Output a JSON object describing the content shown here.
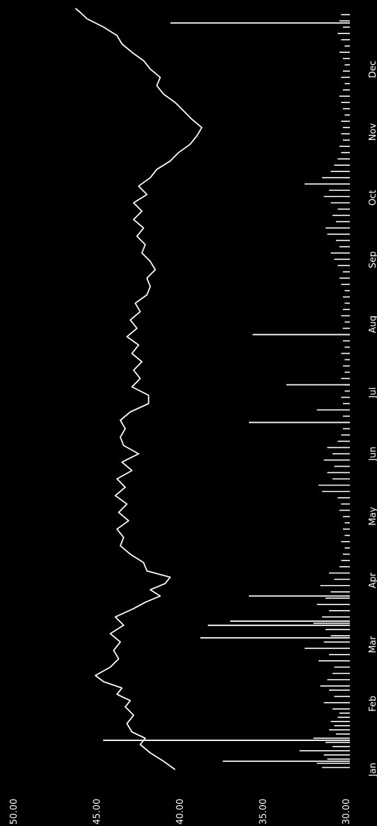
{
  "chart_data": {
    "type": "line",
    "orientation": "rotated-90-clockwise",
    "title": "",
    "xlabel": "",
    "ylabel": "",
    "grid": false,
    "legend": "none",
    "colors": {
      "background": "#000000",
      "line": "#ffffff",
      "volume": "#ffffff",
      "text": "#ffffff"
    },
    "ylim": [
      30,
      50
    ],
    "y_ticks": [
      "30.00",
      "35.00",
      "40.00",
      "45.00",
      "50.00"
    ],
    "y_tick_values": [
      30,
      35,
      40,
      45,
      50
    ],
    "x_ticks": [
      "Jan",
      "Feb",
      "Mar",
      "Apr",
      "May",
      "Jun",
      "Jul",
      "Aug",
      "Sep",
      "Oct",
      "Nov",
      "Dec"
    ],
    "x_tick_days": [
      1,
      32,
      60,
      91,
      121,
      152,
      182,
      213,
      244,
      274,
      305,
      335
    ],
    "x_range_days": [
      1,
      365
    ],
    "series": [
      {
        "kind": "price-line",
        "points": [
          [
            1,
            40.3
          ],
          [
            5,
            41.0
          ],
          [
            9,
            41.8
          ],
          [
            13,
            42.4
          ],
          [
            16,
            42.1
          ],
          [
            19,
            42.9
          ],
          [
            23,
            43.2
          ],
          [
            27,
            42.8
          ],
          [
            31,
            43.3
          ],
          [
            34,
            43.0
          ],
          [
            37,
            43.8
          ],
          [
            40,
            43.5
          ],
          [
            43,
            44.6
          ],
          [
            46,
            45.1
          ],
          [
            50,
            44.2
          ],
          [
            54,
            43.7
          ],
          [
            58,
            44.0
          ],
          [
            62,
            43.6
          ],
          [
            66,
            44.2
          ],
          [
            70,
            43.4
          ],
          [
            74,
            43.9
          ],
          [
            78,
            42.8
          ],
          [
            81,
            42.1
          ],
          [
            84,
            41.2
          ],
          [
            87,
            41.8
          ],
          [
            90,
            40.9
          ],
          [
            93,
            40.6
          ],
          [
            96,
            42.0
          ],
          [
            100,
            42.2
          ],
          [
            104,
            43.0
          ],
          [
            108,
            43.6
          ],
          [
            112,
            43.4
          ],
          [
            116,
            43.8
          ],
          [
            120,
            43.1
          ],
          [
            124,
            43.7
          ],
          [
            128,
            43.2
          ],
          [
            132,
            43.9
          ],
          [
            136,
            43.3
          ],
          [
            140,
            43.8
          ],
          [
            144,
            42.9
          ],
          [
            148,
            43.5
          ],
          [
            152,
            42.5
          ],
          [
            156,
            43.4
          ],
          [
            160,
            43.6
          ],
          [
            164,
            43.3
          ],
          [
            168,
            43.6
          ],
          [
            172,
            43.0
          ],
          [
            176,
            41.9
          ],
          [
            180,
            41.9
          ],
          [
            184,
            42.9
          ],
          [
            188,
            42.4
          ],
          [
            192,
            42.8
          ],
          [
            196,
            42.3
          ],
          [
            200,
            42.9
          ],
          [
            204,
            42.5
          ],
          [
            208,
            43.2
          ],
          [
            212,
            42.6
          ],
          [
            216,
            43.0
          ],
          [
            220,
            42.4
          ],
          [
            224,
            42.7
          ],
          [
            228,
            42.0
          ],
          [
            232,
            41.8
          ],
          [
            236,
            42.0
          ],
          [
            240,
            41.5
          ],
          [
            244,
            41.8
          ],
          [
            248,
            42.3
          ],
          [
            252,
            42.1
          ],
          [
            256,
            42.6
          ],
          [
            260,
            42.2
          ],
          [
            264,
            42.8
          ],
          [
            268,
            42.3
          ],
          [
            272,
            42.8
          ],
          [
            276,
            42.0
          ],
          [
            280,
            42.5
          ],
          [
            284,
            41.8
          ],
          [
            288,
            41.4
          ],
          [
            292,
            40.6
          ],
          [
            296,
            40.1
          ],
          [
            300,
            39.4
          ],
          [
            304,
            39.0
          ],
          [
            308,
            38.7
          ],
          [
            312,
            39.3
          ],
          [
            316,
            39.8
          ],
          [
            320,
            40.3
          ],
          [
            324,
            41.0
          ],
          [
            328,
            41.4
          ],
          [
            332,
            41.2
          ],
          [
            336,
            41.8
          ],
          [
            340,
            42.2
          ],
          [
            344,
            42.9
          ],
          [
            348,
            43.5
          ],
          [
            352,
            43.8
          ],
          [
            356,
            44.6
          ],
          [
            360,
            45.6
          ],
          [
            363,
            46.0
          ],
          [
            365,
            46.3
          ]
        ]
      },
      {
        "kind": "volume-bars",
        "bars": [
          [
            2,
            1.6
          ],
          [
            4,
            1.9
          ],
          [
            6,
            1.3
          ],
          [
            8,
            1.5
          ],
          [
            10,
            2.9
          ],
          [
            12,
            1.0
          ],
          [
            14,
            1.4
          ],
          [
            16,
            2.1
          ],
          [
            18,
            0.8
          ],
          [
            20,
            1.2
          ],
          [
            22,
            0.9
          ],
          [
            24,
            1.1
          ],
          [
            26,
            0.7
          ],
          [
            28,
            0.6
          ],
          [
            30,
            1.0
          ],
          [
            33,
            1.5
          ],
          [
            36,
            0.9
          ],
          [
            39,
            1.2
          ],
          [
            41,
            1.7
          ],
          [
            44,
            1.3
          ],
          [
            47,
            1.0
          ],
          [
            50,
            0.9
          ],
          [
            53,
            1.8
          ],
          [
            56,
            1.2
          ],
          [
            59,
            2.6
          ],
          [
            62,
            1.5
          ],
          [
            65,
            1.1
          ],
          [
            68,
            1.4
          ],
          [
            71,
            2.1
          ],
          [
            74,
            1.6
          ],
          [
            77,
            1.2
          ],
          [
            80,
            1.9
          ],
          [
            83,
            1.4
          ],
          [
            86,
            1.1
          ],
          [
            89,
            1.7
          ],
          [
            92,
            0.9
          ],
          [
            95,
            1.2
          ],
          [
            98,
            0.6
          ],
          [
            101,
            0.5
          ],
          [
            104,
            0.4
          ],
          [
            107,
            0.3
          ],
          [
            110,
            0.5
          ],
          [
            113,
            0.3
          ],
          [
            116,
            0.4
          ],
          [
            119,
            0.3
          ],
          [
            122,
            0.4
          ],
          [
            125,
            0.6
          ],
          [
            128,
            0.5
          ],
          [
            131,
            0.7
          ],
          [
            134,
            1.6
          ],
          [
            137,
            1.8
          ],
          [
            140,
            1.0
          ],
          [
            143,
            1.3
          ],
          [
            146,
            0.9
          ],
          [
            149,
            1.5
          ],
          [
            152,
            1.0
          ],
          [
            155,
            1.3
          ],
          [
            158,
            0.7
          ],
          [
            161,
            0.5
          ],
          [
            164,
            0.4
          ],
          [
            167,
            0.3
          ],
          [
            170,
            0.4
          ],
          [
            173,
            1.9
          ],
          [
            176,
            0.4
          ],
          [
            179,
            0.5
          ],
          [
            182,
            0.3
          ],
          [
            185,
            0.4
          ],
          [
            188,
            0.5
          ],
          [
            191,
            0.3
          ],
          [
            194,
            0.4
          ],
          [
            197,
            0.3
          ],
          [
            200,
            0.5
          ],
          [
            203,
            0.3
          ],
          [
            206,
            0.4
          ],
          [
            209,
            0.3
          ],
          [
            212,
            0.4
          ],
          [
            215,
            0.3
          ],
          [
            218,
            0.5
          ],
          [
            221,
            0.4
          ],
          [
            224,
            0.3
          ],
          [
            227,
            0.4
          ],
          [
            230,
            0.3
          ],
          [
            233,
            0.5
          ],
          [
            236,
            0.6
          ],
          [
            239,
            0.4
          ],
          [
            242,
            0.7
          ],
          [
            245,
            0.9
          ],
          [
            248,
            1.1
          ],
          [
            251,
            0.6
          ],
          [
            254,
            0.8
          ],
          [
            257,
            1.3
          ],
          [
            260,
            1.4
          ],
          [
            263,
            0.8
          ],
          [
            266,
            1.0
          ],
          [
            269,
            0.7
          ],
          [
            272,
            1.1
          ],
          [
            275,
            1.5
          ],
          [
            278,
            1.2
          ],
          [
            281,
            2.6
          ],
          [
            284,
            1.6
          ],
          [
            287,
            1.1
          ],
          [
            290,
            0.9
          ],
          [
            293,
            0.7
          ],
          [
            296,
            0.5
          ],
          [
            299,
            0.6
          ],
          [
            302,
            0.4
          ],
          [
            305,
            0.5
          ],
          [
            308,
            0.4
          ],
          [
            311,
            0.5
          ],
          [
            314,
            0.3
          ],
          [
            317,
            0.4
          ],
          [
            320,
            0.5
          ],
          [
            323,
            0.6
          ],
          [
            326,
            0.4
          ],
          [
            329,
            0.3
          ],
          [
            332,
            0.5
          ],
          [
            335,
            0.4
          ],
          [
            338,
            0.3
          ],
          [
            341,
            0.4
          ],
          [
            344,
            0.6
          ],
          [
            347,
            0.3
          ],
          [
            350,
            0.5
          ],
          [
            353,
            0.7
          ],
          [
            356,
            0.4
          ],
          [
            359,
            0.6
          ],
          [
            362,
            0.5
          ]
        ],
        "spikes": [
          [
            5,
            3.4
          ],
          [
            15,
            6.6
          ],
          [
            64,
            4.0
          ],
          [
            70,
            3.8
          ],
          [
            72,
            3.2
          ],
          [
            84,
            2.7
          ],
          [
            167,
            2.7
          ],
          [
            185,
            1.7
          ],
          [
            209,
            2.6
          ],
          [
            358,
            4.8
          ]
        ]
      }
    ]
  }
}
